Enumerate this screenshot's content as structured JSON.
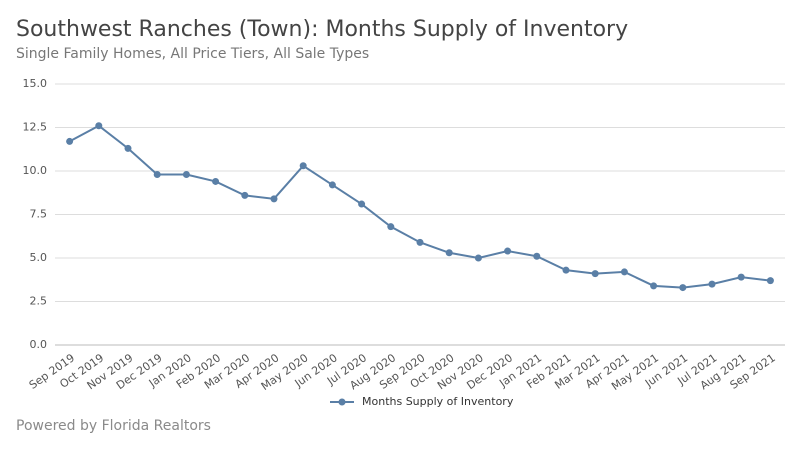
{
  "chart_data": {
    "type": "line",
    "title": "Southwest Ranches (Town): Months Supply of Inventory",
    "subtitle": "Single Family Homes, All Price Tiers, All Sale Types",
    "source": "Powered by Florida Realtors",
    "categories": [
      "Sep 2019",
      "Oct 2019",
      "Nov 2019",
      "Dec 2019",
      "Jan 2020",
      "Feb 2020",
      "Mar 2020",
      "Apr 2020",
      "May 2020",
      "Jun 2020",
      "Jul 2020",
      "Aug 2020",
      "Sep 2020",
      "Oct 2020",
      "Nov 2020",
      "Dec 2020",
      "Jan 2021",
      "Feb 2021",
      "Mar 2021",
      "Apr 2021",
      "May 2021",
      "Jun 2021",
      "Jul 2021",
      "Aug 2021",
      "Sep 2021"
    ],
    "series": [
      {
        "name": "Months Supply of Inventory",
        "color": "#5a7fa6",
        "values": [
          11.7,
          12.6,
          11.3,
          9.8,
          9.8,
          9.4,
          8.6,
          8.4,
          10.3,
          9.2,
          8.1,
          6.8,
          5.9,
          5.3,
          5.0,
          5.4,
          5.1,
          4.3,
          4.1,
          4.2,
          3.4,
          3.3,
          3.5,
          3.9,
          3.7
        ]
      }
    ],
    "ylim": [
      0,
      15
    ],
    "yticks": [
      {
        "value": 0,
        "label": "0.0"
      },
      2.5,
      {
        "value": 5,
        "label": "5.0"
      },
      7.5,
      {
        "value": 10,
        "label": "10.0"
      },
      12.5,
      {
        "value": 15,
        "label": "15.0"
      }
    ],
    "grid": true,
    "legend": "bottom"
  }
}
